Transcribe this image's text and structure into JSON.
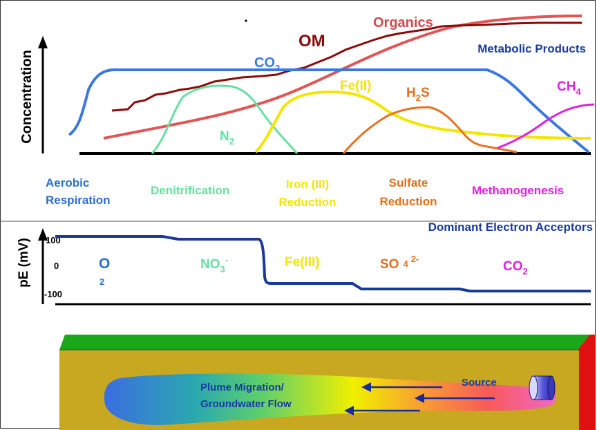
{
  "concentration_panel": {
    "axis_label": "Concentration",
    "header": "Metabolic Products",
    "curves": [
      {
        "id": "co2",
        "label_main": "CO",
        "label_sub": "2",
        "color": "#3a78e0"
      },
      {
        "id": "om",
        "label_main": "OM",
        "label_sub": "",
        "color": "#8b0a0a"
      },
      {
        "id": "organics",
        "label_main": "Organics",
        "label_sub": "",
        "color": "#e05555"
      },
      {
        "id": "n2",
        "label_main": "N",
        "label_sub": "2",
        "color": "#66e0a0"
      },
      {
        "id": "fe2",
        "label_main": "Fe(II)",
        "label_sub": "",
        "color": "#f2e600"
      },
      {
        "id": "h2s",
        "label_main": "H",
        "label_sub": "2",
        "label_tail": "S",
        "color": "#e8701e"
      },
      {
        "id": "ch4",
        "label_main": "CH",
        "label_sub": "4",
        "color": "#e020e0"
      }
    ]
  },
  "processes": [
    {
      "id": "aerobic",
      "line1": "Aerobic",
      "line2": "Respiration",
      "color": "#2a6ed0"
    },
    {
      "id": "denitrification",
      "line1": "Denitrification",
      "line2": "",
      "color": "#66e0a0"
    },
    {
      "id": "iron",
      "line1": "Iron (III)",
      "line2": "Reduction",
      "color": "#f2e600"
    },
    {
      "id": "sulfate",
      "line1": "Sulfate",
      "line2": "Reduction",
      "color": "#e07020"
    },
    {
      "id": "methanogenesis",
      "line1": "Methanogenesis",
      "line2": "",
      "color": "#e020e0"
    }
  ],
  "pe_panel": {
    "axis_label": "pE (mV)",
    "header": "Dominant Electron Acceptors",
    "ticks": [
      "100",
      "0",
      "-100"
    ],
    "acceptors": [
      {
        "id": "o2",
        "main": "O",
        "sup": "",
        "sub": "2",
        "color": "#2a6ed0"
      },
      {
        "id": "no3",
        "main": "NO",
        "sub": "3",
        "sup": "-",
        "color": "#66e0a0"
      },
      {
        "id": "fe3",
        "main": "Fe(III)",
        "sub": "",
        "sup": "",
        "color": "#f2e600"
      },
      {
        "id": "so4",
        "main": "SO",
        "sub": "4",
        "sup": "2-",
        "color": "#e07020"
      },
      {
        "id": "co2",
        "main": "CO",
        "sub": "2",
        "sup": "",
        "color": "#e020e0"
      }
    ]
  },
  "aquifer": {
    "source_label": "Source",
    "plume_line1": "Plume Migration/",
    "plume_line2": "Groundwater Flow"
  }
}
